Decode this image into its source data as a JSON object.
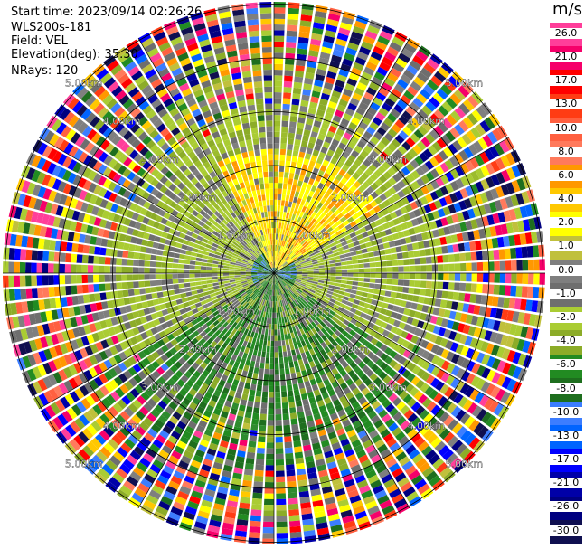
{
  "header": {
    "start_time": "Start time: 2023/09/14 02:26:26",
    "instrument": "WLS200s-181",
    "field": "Field: VEL",
    "elevation": "Elevation(deg): 35.30",
    "nrays": "NRays: 120"
  },
  "colorbar": {
    "unit": "m/s",
    "labels": [
      "26.0",
      "21.0",
      "17.0",
      "13.0",
      "10.0",
      "8.0",
      "6.0",
      "4.0",
      "2.0",
      "1.0",
      "0.0",
      "-1.0",
      "-2.0",
      "-4.0",
      "-6.0",
      "-8.0",
      "-10.0",
      "-13.0",
      "-17.0",
      "-21.0",
      "-26.0",
      "-30.0"
    ],
    "colors": [
      "#ff3e9a",
      "#f6006a",
      "#ff0000",
      "#ff3c14",
      "#ff6040",
      "#ff7a5c",
      "#ff9800",
      "#ffc800",
      "#ffff00",
      "#c0c03c",
      "#7f7f7f",
      "#6e6e6e",
      "#aacc33",
      "#8cac28",
      "#228b22",
      "#1e6e1e",
      "#3c7dff",
      "#0064ff",
      "#0000ff",
      "#0000a8",
      "#000080",
      "#101050"
    ]
  },
  "chart_data": {
    "type": "ppi",
    "field": "VEL",
    "elevation_deg": 35.3,
    "nrays": 120,
    "range_rings_km": [
      1.0,
      2.0,
      3.0,
      4.0,
      5.0
    ],
    "ring_labels": [
      "1.00km",
      "2.00km",
      "3.00km",
      "4.00km",
      "5.00km"
    ],
    "value_range": [
      -30.0,
      26.0
    ]
  }
}
